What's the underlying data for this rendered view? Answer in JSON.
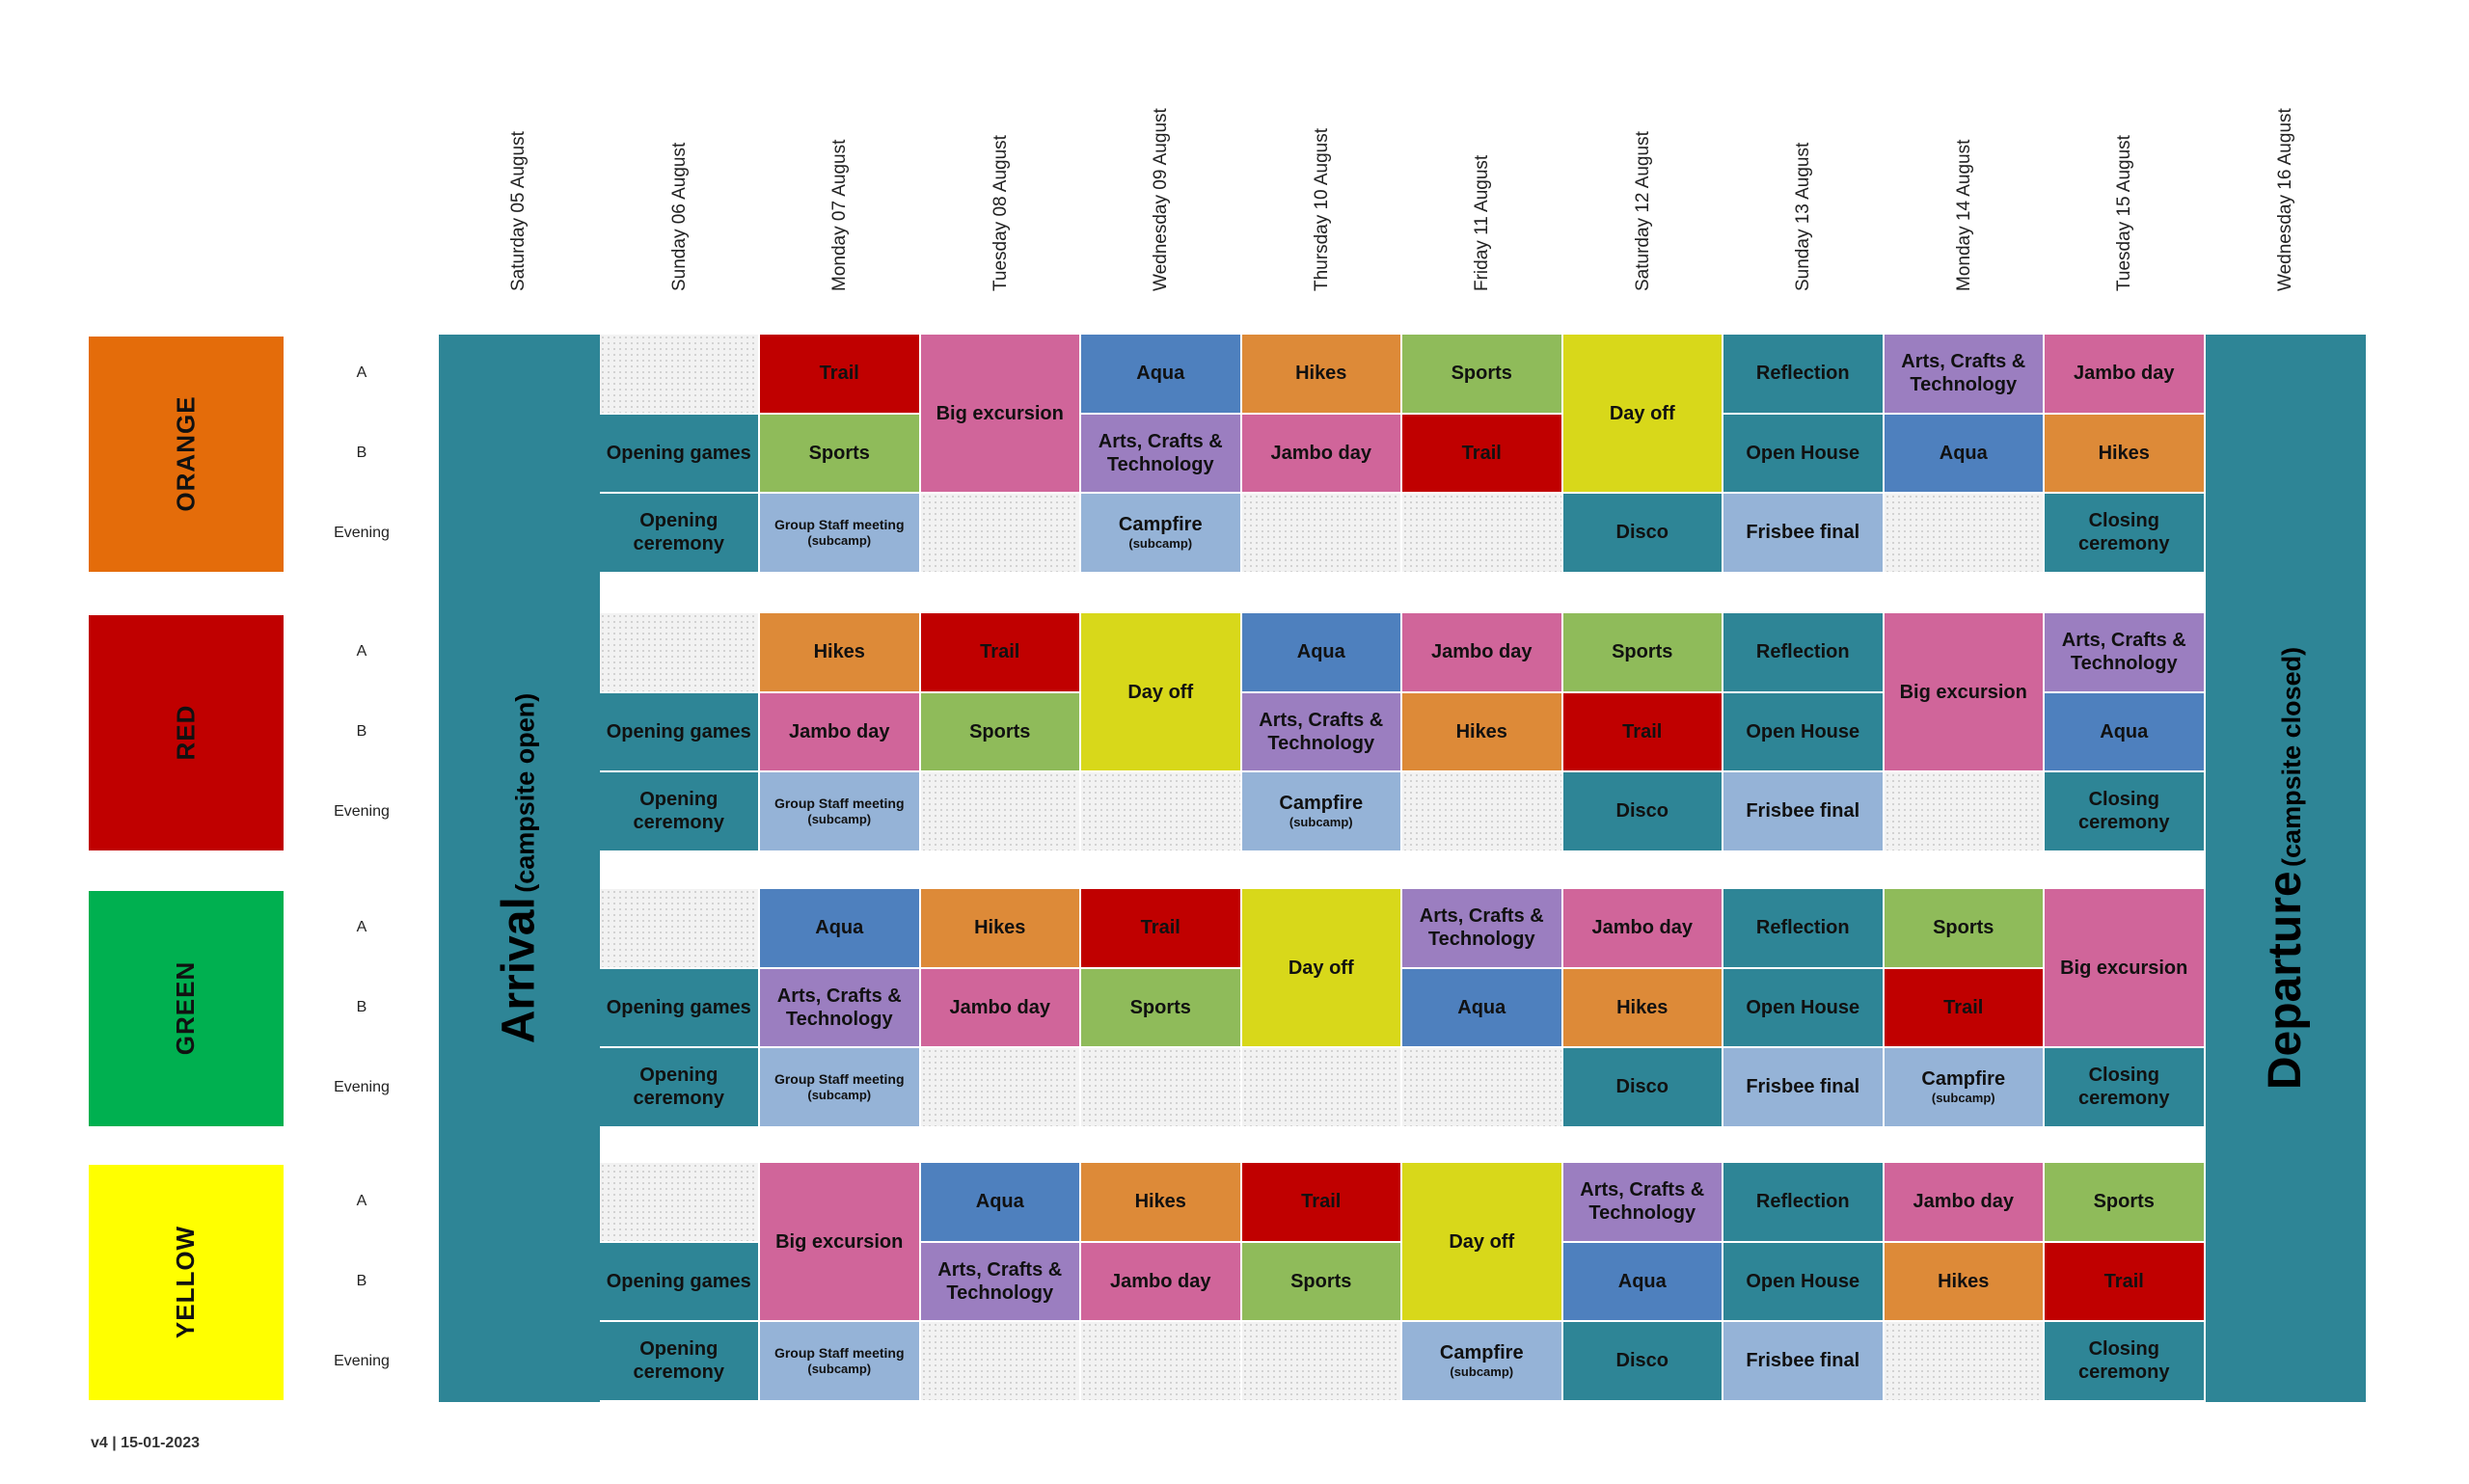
{
  "days": [
    "Saturday 05 August",
    "Sunday 06 August",
    "Monday 07 August",
    "Tuesday 08 August",
    "Wednesday 09 August",
    "Thursday 10 August",
    "Friday 11 August",
    "Saturday 12 August",
    "Sunday 13 August",
    "Monday 14 August",
    "Tuesday 15 August",
    "Wednesday 16 August"
  ],
  "slots": [
    "A",
    "B",
    "Evening"
  ],
  "arrival": {
    "main": "Arrival",
    "sub": "(campsite open)"
  },
  "departure": {
    "main": "Departure",
    "sub": "(campsite closed)"
  },
  "version": "v4 | 15-01-2023",
  "colors": {
    "Trail": "#c00000",
    "Hikes": "#dd8a38",
    "Aqua": "#4e80be",
    "Sports": "#8fbb5a",
    "Jambo day": "#d0659a",
    "Big excursion": "#d0659a",
    "Arts, Crafts & Technology": "#9b7ec0",
    "Day off": "#d8d81a",
    "Reflection": "#2e8596",
    "Open House": "#2e8596",
    "Opening games": "#2e8596",
    "Opening ceremony": "#2e8596",
    "Closing ceremony": "#2e8596",
    "Disco": "#2e8596",
    "Frisbee final": "#95b3d7",
    "Campfire": "#95b3d7",
    "Group Staff meeting": "#95b3d7"
  },
  "teams": [
    {
      "name": "ORANGE",
      "color": "#e46c0a",
      "cells": [
        {
          "col": 1,
          "row": 0,
          "span": 1,
          "empty": true
        },
        {
          "col": 1,
          "row": 1,
          "span": 1,
          "label": "Opening games"
        },
        {
          "col": 1,
          "row": 2,
          "span": 1,
          "label": "Opening ceremony"
        },
        {
          "col": 2,
          "row": 0,
          "span": 1,
          "label": "Trail"
        },
        {
          "col": 2,
          "row": 1,
          "span": 1,
          "label": "Sports"
        },
        {
          "col": 2,
          "row": 2,
          "span": 1,
          "label": "Group Staff meeting",
          "sub": "(subcamp)",
          "small": true
        },
        {
          "col": 3,
          "row": 0,
          "span": 2,
          "label": "Big excursion"
        },
        {
          "col": 3,
          "row": 2,
          "span": 1,
          "empty": true
        },
        {
          "col": 4,
          "row": 0,
          "span": 1,
          "label": "Aqua"
        },
        {
          "col": 4,
          "row": 1,
          "span": 1,
          "label": "Arts, Crafts & Technology"
        },
        {
          "col": 4,
          "row": 2,
          "span": 1,
          "label": "Campfire",
          "sub": "(subcamp)"
        },
        {
          "col": 5,
          "row": 0,
          "span": 1,
          "label": "Hikes"
        },
        {
          "col": 5,
          "row": 1,
          "span": 1,
          "label": "Jambo day"
        },
        {
          "col": 5,
          "row": 2,
          "span": 1,
          "empty": true
        },
        {
          "col": 6,
          "row": 0,
          "span": 1,
          "label": "Sports"
        },
        {
          "col": 6,
          "row": 1,
          "span": 1,
          "label": "Trail"
        },
        {
          "col": 6,
          "row": 2,
          "span": 1,
          "empty": true
        },
        {
          "col": 7,
          "row": 0,
          "span": 2,
          "label": "Day off"
        },
        {
          "col": 7,
          "row": 2,
          "span": 1,
          "label": "Disco"
        },
        {
          "col": 8,
          "row": 0,
          "span": 1,
          "label": "Reflection"
        },
        {
          "col": 8,
          "row": 1,
          "span": 1,
          "label": "Open House"
        },
        {
          "col": 8,
          "row": 2,
          "span": 1,
          "label": "Frisbee final"
        },
        {
          "col": 9,
          "row": 0,
          "span": 1,
          "label": "Arts, Crafts & Technology"
        },
        {
          "col": 9,
          "row": 1,
          "span": 1,
          "label": "Aqua"
        },
        {
          "col": 9,
          "row": 2,
          "span": 1,
          "empty": true
        },
        {
          "col": 10,
          "row": 0,
          "span": 1,
          "label": "Jambo day"
        },
        {
          "col": 10,
          "row": 1,
          "span": 1,
          "label": "Hikes"
        },
        {
          "col": 10,
          "row": 2,
          "span": 1,
          "label": "Closing ceremony"
        }
      ]
    },
    {
      "name": "RED",
      "color": "#c00000",
      "cells": [
        {
          "col": 1,
          "row": 0,
          "span": 1,
          "empty": true
        },
        {
          "col": 1,
          "row": 1,
          "span": 1,
          "label": "Opening games"
        },
        {
          "col": 1,
          "row": 2,
          "span": 1,
          "label": "Opening ceremony"
        },
        {
          "col": 2,
          "row": 0,
          "span": 1,
          "label": "Hikes"
        },
        {
          "col": 2,
          "row": 1,
          "span": 1,
          "label": "Jambo day"
        },
        {
          "col": 2,
          "row": 2,
          "span": 1,
          "label": "Group Staff meeting",
          "sub": "(subcamp)",
          "small": true
        },
        {
          "col": 3,
          "row": 0,
          "span": 1,
          "label": "Trail"
        },
        {
          "col": 3,
          "row": 1,
          "span": 1,
          "label": "Sports"
        },
        {
          "col": 3,
          "row": 2,
          "span": 1,
          "empty": true
        },
        {
          "col": 4,
          "row": 0,
          "span": 2,
          "label": "Day off"
        },
        {
          "col": 4,
          "row": 2,
          "span": 1,
          "empty": true
        },
        {
          "col": 5,
          "row": 0,
          "span": 1,
          "label": "Aqua"
        },
        {
          "col": 5,
          "row": 1,
          "span": 1,
          "label": "Arts, Crafts & Technology"
        },
        {
          "col": 5,
          "row": 2,
          "span": 1,
          "label": "Campfire",
          "sub": "(subcamp)"
        },
        {
          "col": 6,
          "row": 0,
          "span": 1,
          "label": "Jambo day"
        },
        {
          "col": 6,
          "row": 1,
          "span": 1,
          "label": "Hikes"
        },
        {
          "col": 6,
          "row": 2,
          "span": 1,
          "empty": true
        },
        {
          "col": 7,
          "row": 0,
          "span": 1,
          "label": "Sports"
        },
        {
          "col": 7,
          "row": 1,
          "span": 1,
          "label": "Trail"
        },
        {
          "col": 7,
          "row": 2,
          "span": 1,
          "label": "Disco"
        },
        {
          "col": 8,
          "row": 0,
          "span": 1,
          "label": "Reflection"
        },
        {
          "col": 8,
          "row": 1,
          "span": 1,
          "label": "Open House"
        },
        {
          "col": 8,
          "row": 2,
          "span": 1,
          "label": "Frisbee final"
        },
        {
          "col": 9,
          "row": 0,
          "span": 2,
          "label": "Big excursion"
        },
        {
          "col": 9,
          "row": 2,
          "span": 1,
          "empty": true
        },
        {
          "col": 10,
          "row": 0,
          "span": 1,
          "label": "Arts, Crafts & Technology"
        },
        {
          "col": 10,
          "row": 1,
          "span": 1,
          "label": "Aqua"
        },
        {
          "col": 10,
          "row": 2,
          "span": 1,
          "label": "Closing ceremony"
        }
      ]
    },
    {
      "name": "GREEN",
      "color": "#00b050",
      "cells": [
        {
          "col": 1,
          "row": 0,
          "span": 1,
          "empty": true
        },
        {
          "col": 1,
          "row": 1,
          "span": 1,
          "label": "Opening games"
        },
        {
          "col": 1,
          "row": 2,
          "span": 1,
          "label": "Opening ceremony"
        },
        {
          "col": 2,
          "row": 0,
          "span": 1,
          "label": "Aqua"
        },
        {
          "col": 2,
          "row": 1,
          "span": 1,
          "label": "Arts, Crafts & Technology"
        },
        {
          "col": 2,
          "row": 2,
          "span": 1,
          "label": "Group Staff meeting",
          "sub": "(subcamp)",
          "small": true
        },
        {
          "col": 3,
          "row": 0,
          "span": 1,
          "label": "Hikes"
        },
        {
          "col": 3,
          "row": 1,
          "span": 1,
          "label": "Jambo day"
        },
        {
          "col": 3,
          "row": 2,
          "span": 1,
          "empty": true
        },
        {
          "col": 4,
          "row": 0,
          "span": 1,
          "label": "Trail"
        },
        {
          "col": 4,
          "row": 1,
          "span": 1,
          "label": "Sports"
        },
        {
          "col": 4,
          "row": 2,
          "span": 1,
          "empty": true
        },
        {
          "col": 5,
          "row": 0,
          "span": 2,
          "label": "Day off"
        },
        {
          "col": 5,
          "row": 2,
          "span": 1,
          "empty": true
        },
        {
          "col": 6,
          "row": 0,
          "span": 1,
          "label": "Arts, Crafts & Technology"
        },
        {
          "col": 6,
          "row": 1,
          "span": 1,
          "label": "Aqua"
        },
        {
          "col": 6,
          "row": 2,
          "span": 1,
          "empty": true
        },
        {
          "col": 7,
          "row": 0,
          "span": 1,
          "label": "Jambo day"
        },
        {
          "col": 7,
          "row": 1,
          "span": 1,
          "label": "Hikes"
        },
        {
          "col": 7,
          "row": 2,
          "span": 1,
          "label": "Disco"
        },
        {
          "col": 8,
          "row": 0,
          "span": 1,
          "label": "Reflection"
        },
        {
          "col": 8,
          "row": 1,
          "span": 1,
          "label": "Open House"
        },
        {
          "col": 8,
          "row": 2,
          "span": 1,
          "label": "Frisbee final"
        },
        {
          "col": 9,
          "row": 0,
          "span": 1,
          "label": "Sports"
        },
        {
          "col": 9,
          "row": 1,
          "span": 1,
          "label": "Trail"
        },
        {
          "col": 9,
          "row": 2,
          "span": 1,
          "label": "Campfire",
          "sub": "(subcamp)"
        },
        {
          "col": 10,
          "row": 0,
          "span": 2,
          "label": "Big excursion"
        },
        {
          "col": 10,
          "row": 2,
          "span": 1,
          "label": "Closing ceremony"
        }
      ]
    },
    {
      "name": "YELLOW",
      "color": "#ffff00",
      "cells": [
        {
          "col": 1,
          "row": 0,
          "span": 1,
          "empty": true
        },
        {
          "col": 1,
          "row": 1,
          "span": 1,
          "label": "Opening games"
        },
        {
          "col": 1,
          "row": 2,
          "span": 1,
          "label": "Opening ceremony"
        },
        {
          "col": 2,
          "row": 0,
          "span": 2,
          "label": "Big excursion"
        },
        {
          "col": 2,
          "row": 2,
          "span": 1,
          "label": "Group Staff meeting",
          "sub": "(subcamp)",
          "small": true
        },
        {
          "col": 3,
          "row": 0,
          "span": 1,
          "label": "Aqua"
        },
        {
          "col": 3,
          "row": 1,
          "span": 1,
          "label": "Arts, Crafts & Technology"
        },
        {
          "col": 3,
          "row": 2,
          "span": 1,
          "empty": true
        },
        {
          "col": 4,
          "row": 0,
          "span": 1,
          "label": "Hikes"
        },
        {
          "col": 4,
          "row": 1,
          "span": 1,
          "label": "Jambo day"
        },
        {
          "col": 4,
          "row": 2,
          "span": 1,
          "empty": true
        },
        {
          "col": 5,
          "row": 0,
          "span": 1,
          "label": "Trail"
        },
        {
          "col": 5,
          "row": 1,
          "span": 1,
          "label": "Sports"
        },
        {
          "col": 5,
          "row": 2,
          "span": 1,
          "empty": true
        },
        {
          "col": 6,
          "row": 0,
          "span": 2,
          "label": "Day off"
        },
        {
          "col": 6,
          "row": 2,
          "span": 1,
          "label": "Campfire",
          "sub": "(subcamp)"
        },
        {
          "col": 7,
          "row": 0,
          "span": 1,
          "label": "Arts, Crafts & Technology"
        },
        {
          "col": 7,
          "row": 1,
          "span": 1,
          "label": "Aqua"
        },
        {
          "col": 7,
          "row": 2,
          "span": 1,
          "label": "Disco"
        },
        {
          "col": 8,
          "row": 0,
          "span": 1,
          "label": "Reflection"
        },
        {
          "col": 8,
          "row": 1,
          "span": 1,
          "label": "Open House"
        },
        {
          "col": 8,
          "row": 2,
          "span": 1,
          "label": "Frisbee final"
        },
        {
          "col": 9,
          "row": 0,
          "span": 1,
          "label": "Jambo day"
        },
        {
          "col": 9,
          "row": 1,
          "span": 1,
          "label": "Hikes"
        },
        {
          "col": 9,
          "row": 2,
          "span": 1,
          "empty": true
        },
        {
          "col": 10,
          "row": 0,
          "span": 1,
          "label": "Sports"
        },
        {
          "col": 10,
          "row": 1,
          "span": 1,
          "label": "Trail"
        },
        {
          "col": 10,
          "row": 2,
          "span": 1,
          "label": "Closing ceremony"
        }
      ]
    }
  ]
}
